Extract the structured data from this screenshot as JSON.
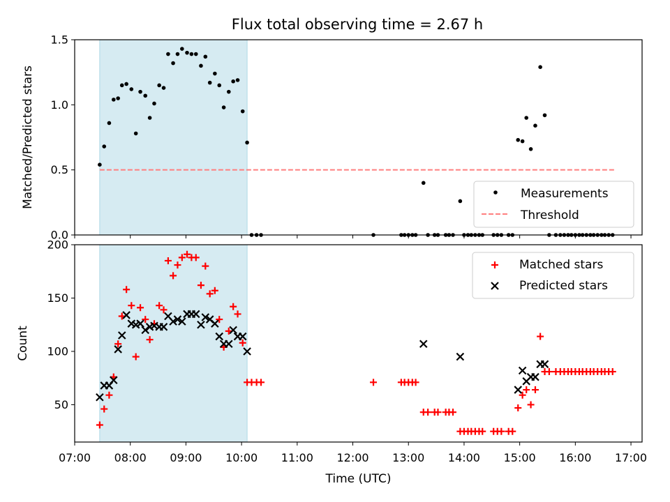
{
  "title": "Flux total observing time = 2.67 h",
  "chart_data": [
    {
      "type": "scatter",
      "panel": "top",
      "ylabel": "Matched/Predicted stars",
      "xlabel": "",
      "xlim": [
        7.0,
        17.2
      ],
      "ylim": [
        0.0,
        1.5
      ],
      "ytick_values": [
        0.0,
        0.5,
        1.0,
        1.5
      ],
      "ytick_labels": [
        "0.0",
        "0.5",
        "1.0",
        "1.5"
      ],
      "shaded_span": [
        7.45,
        10.1
      ],
      "threshold": {
        "y": 0.5,
        "x_range": [
          7.45,
          16.7
        ],
        "name": "Threshold",
        "color": "#ff7f7f"
      },
      "legend": [
        "Measurements",
        "Threshold"
      ],
      "legend_location": "lower-right",
      "series": [
        {
          "name": "Measurements",
          "marker": "dot",
          "color": "#000000",
          "points": [
            [
              7.45,
              0.54
            ],
            [
              7.53,
              0.68
            ],
            [
              7.62,
              0.86
            ],
            [
              7.7,
              1.04
            ],
            [
              7.78,
              1.05
            ],
            [
              7.85,
              1.15
            ],
            [
              7.93,
              1.16
            ],
            [
              8.02,
              1.12
            ],
            [
              8.1,
              0.78
            ],
            [
              8.18,
              1.1
            ],
            [
              8.27,
              1.07
            ],
            [
              8.35,
              0.9
            ],
            [
              8.43,
              1.01
            ],
            [
              8.52,
              1.15
            ],
            [
              8.6,
              1.13
            ],
            [
              8.68,
              1.39
            ],
            [
              8.77,
              1.32
            ],
            [
              8.85,
              1.39
            ],
            [
              8.93,
              1.43
            ],
            [
              9.02,
              1.4
            ],
            [
              9.1,
              1.39
            ],
            [
              9.18,
              1.39
            ],
            [
              9.27,
              1.3
            ],
            [
              9.35,
              1.37
            ],
            [
              9.43,
              1.17
            ],
            [
              9.52,
              1.24
            ],
            [
              9.6,
              1.15
            ],
            [
              9.68,
              0.98
            ],
            [
              9.77,
              1.1
            ],
            [
              9.85,
              1.18
            ],
            [
              9.93,
              1.19
            ],
            [
              10.02,
              0.95
            ],
            [
              10.1,
              0.71
            ],
            [
              10.18,
              0.0
            ],
            [
              10.27,
              0.0
            ],
            [
              10.35,
              0.0
            ],
            [
              12.37,
              0.0
            ],
            [
              12.87,
              0.0
            ],
            [
              12.93,
              0.0
            ],
            [
              13.0,
              0.0
            ],
            [
              13.07,
              0.0
            ],
            [
              13.13,
              0.0
            ],
            [
              13.27,
              0.4
            ],
            [
              13.35,
              0.0
            ],
            [
              13.47,
              0.0
            ],
            [
              13.53,
              0.0
            ],
            [
              13.67,
              0.0
            ],
            [
              13.73,
              0.0
            ],
            [
              13.8,
              0.0
            ],
            [
              13.93,
              0.26
            ],
            [
              14.0,
              0.0
            ],
            [
              14.07,
              0.0
            ],
            [
              14.13,
              0.0
            ],
            [
              14.2,
              0.0
            ],
            [
              14.27,
              0.0
            ],
            [
              14.33,
              0.0
            ],
            [
              14.53,
              0.0
            ],
            [
              14.6,
              0.0
            ],
            [
              14.67,
              0.0
            ],
            [
              14.8,
              0.0
            ],
            [
              14.87,
              0.0
            ],
            [
              14.97,
              0.73
            ],
            [
              15.05,
              0.72
            ],
            [
              15.12,
              0.9
            ],
            [
              15.2,
              0.66
            ],
            [
              15.28,
              0.84
            ],
            [
              15.37,
              1.29
            ],
            [
              15.45,
              0.92
            ],
            [
              15.53,
              0.0
            ],
            [
              15.65,
              0.0
            ],
            [
              15.73,
              0.0
            ],
            [
              15.8,
              0.0
            ],
            [
              15.87,
              0.0
            ],
            [
              15.93,
              0.0
            ],
            [
              16.0,
              0.0
            ],
            [
              16.07,
              0.0
            ],
            [
              16.13,
              0.0
            ],
            [
              16.2,
              0.0
            ],
            [
              16.27,
              0.0
            ],
            [
              16.33,
              0.0
            ],
            [
              16.4,
              0.0
            ],
            [
              16.47,
              0.0
            ],
            [
              16.53,
              0.0
            ],
            [
              16.6,
              0.0
            ],
            [
              16.67,
              0.0
            ]
          ]
        }
      ]
    },
    {
      "type": "scatter",
      "panel": "bottom",
      "ylabel": "Count",
      "xlabel": "Time (UTC)",
      "xlim": [
        7.0,
        17.2
      ],
      "ylim": [
        15,
        200
      ],
      "ytick_values": [
        50,
        100,
        150,
        200
      ],
      "ytick_labels": [
        "50",
        "100",
        "150",
        "200"
      ],
      "xtick_values": [
        7,
        8,
        9,
        10,
        11,
        12,
        13,
        14,
        15,
        16,
        17
      ],
      "xtick_labels": [
        "07:00",
        "08:00",
        "09:00",
        "10:00",
        "11:00",
        "12:00",
        "13:00",
        "14:00",
        "15:00",
        "16:00",
        "17:00"
      ],
      "shaded_span": [
        7.45,
        10.1
      ],
      "legend": [
        "Matched stars",
        "Predicted stars"
      ],
      "legend_location": "upper-right",
      "series": [
        {
          "name": "Matched stars",
          "marker": "plus",
          "color": "#ff0000",
          "points": [
            [
              7.45,
              31
            ],
            [
              7.53,
              46
            ],
            [
              7.62,
              59
            ],
            [
              7.7,
              76
            ],
            [
              7.78,
              107
            ],
            [
              7.85,
              133
            ],
            [
              7.93,
              158
            ],
            [
              8.02,
              143
            ],
            [
              8.1,
              95
            ],
            [
              8.18,
              141
            ],
            [
              8.27,
              130
            ],
            [
              8.35,
              111
            ],
            [
              8.43,
              126
            ],
            [
              8.52,
              143
            ],
            [
              8.6,
              139
            ],
            [
              8.68,
              185
            ],
            [
              8.77,
              171
            ],
            [
              8.85,
              181
            ],
            [
              8.93,
              188
            ],
            [
              9.02,
              191
            ],
            [
              9.1,
              188
            ],
            [
              9.18,
              188
            ],
            [
              9.27,
              162
            ],
            [
              9.35,
              180
            ],
            [
              9.43,
              154
            ],
            [
              9.52,
              157
            ],
            [
              9.6,
              130
            ],
            [
              9.68,
              104
            ],
            [
              9.77,
              119
            ],
            [
              9.85,
              142
            ],
            [
              9.93,
              135
            ],
            [
              10.02,
              108
            ],
            [
              10.1,
              71
            ],
            [
              10.18,
              71
            ],
            [
              10.27,
              71
            ],
            [
              10.35,
              71
            ],
            [
              12.37,
              71
            ],
            [
              12.87,
              71
            ],
            [
              12.93,
              71
            ],
            [
              13.0,
              71
            ],
            [
              13.07,
              71
            ],
            [
              13.13,
              71
            ],
            [
              13.27,
              43
            ],
            [
              13.35,
              43
            ],
            [
              13.47,
              43
            ],
            [
              13.53,
              43
            ],
            [
              13.67,
              43
            ],
            [
              13.73,
              43
            ],
            [
              13.8,
              43
            ],
            [
              13.93,
              25
            ],
            [
              14.0,
              25
            ],
            [
              14.07,
              25
            ],
            [
              14.13,
              25
            ],
            [
              14.2,
              25
            ],
            [
              14.27,
              25
            ],
            [
              14.33,
              25
            ],
            [
              14.53,
              25
            ],
            [
              14.6,
              25
            ],
            [
              14.67,
              25
            ],
            [
              14.8,
              25
            ],
            [
              14.87,
              25
            ],
            [
              14.97,
              47
            ],
            [
              15.05,
              59
            ],
            [
              15.12,
              64
            ],
            [
              15.2,
              50
            ],
            [
              15.28,
              64
            ],
            [
              15.37,
              114
            ],
            [
              15.45,
              81
            ],
            [
              15.53,
              81
            ],
            [
              15.65,
              81
            ],
            [
              15.73,
              81
            ],
            [
              15.8,
              81
            ],
            [
              15.87,
              81
            ],
            [
              15.93,
              81
            ],
            [
              16.0,
              81
            ],
            [
              16.07,
              81
            ],
            [
              16.13,
              81
            ],
            [
              16.2,
              81
            ],
            [
              16.27,
              81
            ],
            [
              16.33,
              81
            ],
            [
              16.4,
              81
            ],
            [
              16.47,
              81
            ],
            [
              16.53,
              81
            ],
            [
              16.6,
              81
            ],
            [
              16.67,
              81
            ]
          ]
        },
        {
          "name": "Predicted stars",
          "marker": "x",
          "color": "#000000",
          "points": [
            [
              7.45,
              57
            ],
            [
              7.53,
              68
            ],
            [
              7.62,
              68
            ],
            [
              7.7,
              73
            ],
            [
              7.78,
              102
            ],
            [
              7.85,
              115
            ],
            [
              7.93,
              134
            ],
            [
              8.02,
              126
            ],
            [
              8.1,
              125
            ],
            [
              8.18,
              126
            ],
            [
              8.27,
              120
            ],
            [
              8.35,
              123
            ],
            [
              8.43,
              124
            ],
            [
              8.52,
              123
            ],
            [
              8.6,
              123
            ],
            [
              8.68,
              133
            ],
            [
              8.77,
              128
            ],
            [
              8.85,
              130
            ],
            [
              8.93,
              128
            ],
            [
              9.02,
              135
            ],
            [
              9.1,
              135
            ],
            [
              9.18,
              135
            ],
            [
              9.27,
              125
            ],
            [
              9.35,
              132
            ],
            [
              9.43,
              130
            ],
            [
              9.52,
              126
            ],
            [
              9.6,
              114
            ],
            [
              9.68,
              107
            ],
            [
              9.77,
              107
            ],
            [
              9.85,
              120
            ],
            [
              9.93,
              114
            ],
            [
              10.02,
              114
            ],
            [
              10.1,
              100
            ],
            [
              13.27,
              107
            ],
            [
              13.93,
              95
            ],
            [
              14.97,
              64
            ],
            [
              15.05,
              82
            ],
            [
              15.12,
              72
            ],
            [
              15.2,
              76
            ],
            [
              15.28,
              76
            ],
            [
              15.37,
              88
            ],
            [
              15.45,
              88
            ]
          ]
        }
      ]
    }
  ]
}
